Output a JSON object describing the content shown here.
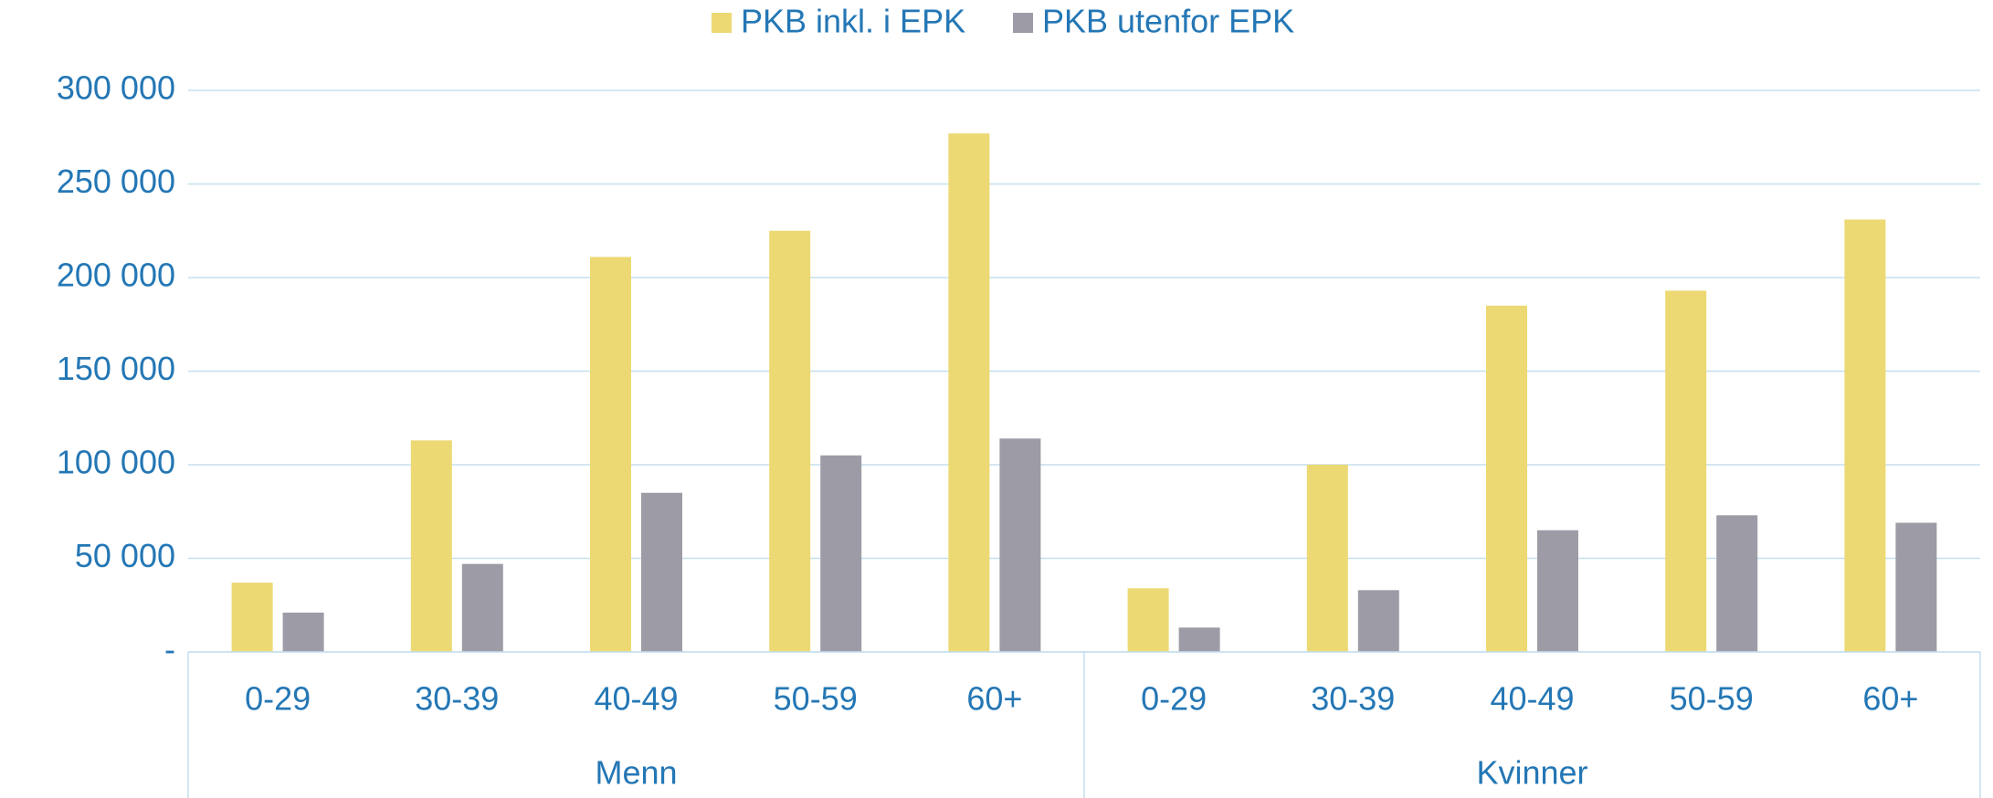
{
  "chart_data": {
    "type": "bar",
    "categories": [
      "0-29",
      "30-39",
      "40-49",
      "50-59",
      "60+",
      "0-29",
      "30-39",
      "40-49",
      "50-59",
      "60+"
    ],
    "groups": [
      "Menn",
      "Kvinner"
    ],
    "series": [
      {
        "name": "PKB inkl. i EPK",
        "color": "#ecd973",
        "values": [
          37000,
          113000,
          211000,
          225000,
          277000,
          34000,
          100000,
          185000,
          193000,
          231000
        ]
      },
      {
        "name": "PKB utenfor EPK",
        "color": "#9d9ca6",
        "values": [
          21000,
          47000,
          85000,
          105000,
          114000,
          13000,
          33000,
          65000,
          73000,
          69000
        ]
      }
    ],
    "ylim": [
      0,
      300000
    ],
    "yticks": [
      {
        "value": 0,
        "label": "-"
      },
      {
        "value": 50000,
        "label": "50 000"
      },
      {
        "value": 100000,
        "label": "100 000"
      },
      {
        "value": 150000,
        "label": "150 000"
      },
      {
        "value": 200000,
        "label": "200 000"
      },
      {
        "value": 250000,
        "label": "250 000"
      },
      {
        "value": 300000,
        "label": "300 000"
      }
    ],
    "grid": true,
    "legend": "top"
  }
}
